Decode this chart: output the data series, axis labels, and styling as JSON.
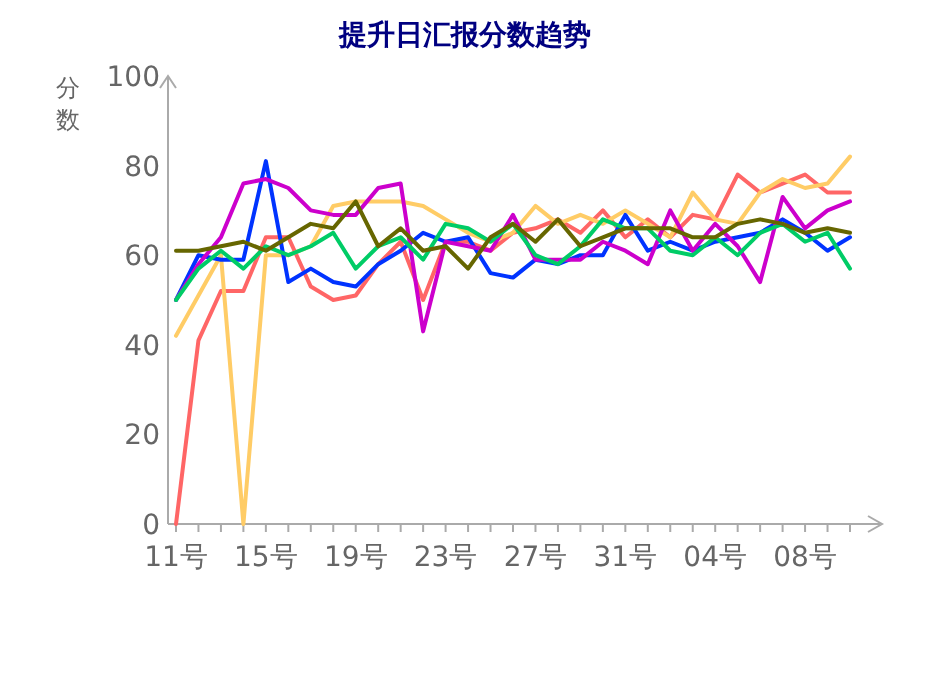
{
  "chart_data": {
    "type": "line",
    "title": "提升日汇报分数趋势",
    "ylabel": "分数",
    "categories": [
      "11号",
      null,
      null,
      null,
      "15号",
      null,
      null,
      null,
      "19号",
      null,
      null,
      null,
      "23号",
      null,
      null,
      null,
      "27号",
      null,
      null,
      null,
      "31号",
      null,
      null,
      null,
      "04号",
      null,
      null,
      null,
      "08号",
      null,
      null
    ],
    "ylim": [
      0,
      100
    ],
    "yticks": [
      0,
      20,
      40,
      60,
      80,
      100
    ],
    "grid": false,
    "legend": false,
    "marker": "none",
    "line_style": "solid",
    "series": [
      {
        "color": "#ff6666",
        "values": [
          0,
          41,
          52,
          52,
          64,
          64,
          53,
          50,
          51,
          58,
          63,
          50,
          63,
          63,
          61,
          65,
          66,
          68,
          65,
          70,
          64,
          68,
          64,
          69,
          68,
          78,
          74,
          76,
          78,
          74,
          74
        ]
      },
      {
        "color": "#ffcc66",
        "values": [
          42,
          51,
          60,
          0,
          60,
          60,
          62,
          71,
          72,
          72,
          72,
          71,
          68,
          65,
          63,
          65,
          71,
          67,
          69,
          67,
          70,
          67,
          64,
          74,
          68,
          67,
          74,
          77,
          75,
          76,
          82
        ]
      },
      {
        "color": "#0033ff",
        "values": [
          50,
          60,
          59,
          59,
          81,
          54,
          57,
          54,
          53,
          58,
          61,
          65,
          63,
          64,
          56,
          55,
          59,
          58,
          60,
          60,
          69,
          61,
          63,
          61,
          63,
          64,
          65,
          68,
          65,
          61,
          64
        ]
      },
      {
        "color": "#cc00cc",
        "values": [
          50,
          58,
          64,
          76,
          77,
          75,
          70,
          69,
          69,
          75,
          76,
          43,
          63,
          62,
          61,
          69,
          59,
          59,
          59,
          63,
          61,
          58,
          70,
          61,
          67,
          62,
          54,
          73,
          66,
          70,
          72
        ]
      },
      {
        "color": "#00cc66",
        "values": [
          50,
          57,
          61,
          57,
          62,
          60,
          62,
          65,
          57,
          62,
          64,
          59,
          67,
          66,
          63,
          67,
          60,
          58,
          62,
          68,
          66,
          66,
          61,
          60,
          64,
          60,
          65,
          67,
          63,
          65,
          57
        ]
      },
      {
        "color": "#666600",
        "values": [
          61,
          61,
          62,
          63,
          61,
          64,
          67,
          66,
          72,
          62,
          66,
          61,
          62,
          57,
          64,
          67,
          63,
          68,
          62,
          64,
          66,
          66,
          66,
          64,
          64,
          67,
          68,
          67,
          65,
          66,
          65
        ]
      }
    ]
  }
}
